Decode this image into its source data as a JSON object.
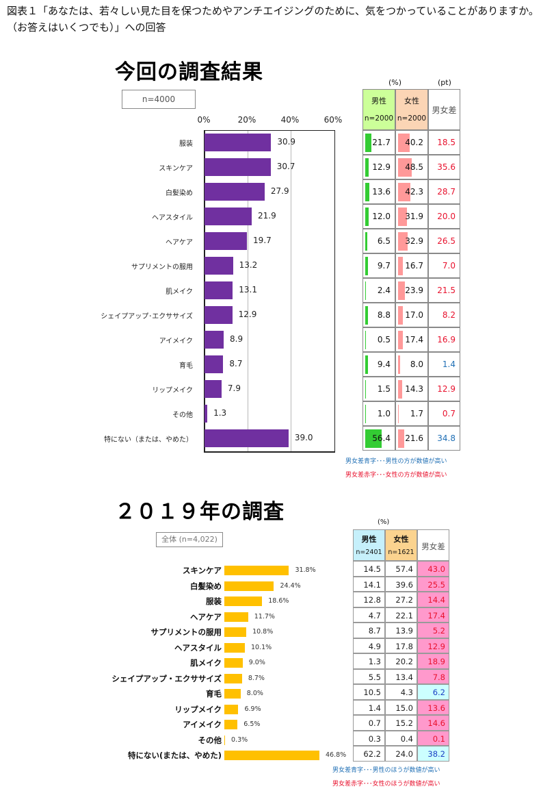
{
  "caption": "図表１「あなたは、若々しい見た目を保つためやアンチエイジングのために、気をつかっていることがありますか。（お答えはいくつでも）」への回答",
  "colors": {
    "bar_2024": "#7030a0",
    "bar_2019": "#ffc000",
    "male_header_2024": "#ccff99",
    "female_header_2024": "#fbd5b5",
    "male_bar": "#33cc33",
    "female_bar": "#ff9999",
    "male_header_2019": "#c6f0fb",
    "female_header_2019": "#fbd38f",
    "diff_female_bg_2019": "#ff99cc",
    "diff_male_bg_2019": "#ccffff",
    "diff_red_text": "#e8112d",
    "diff_blue_text": "#1f6fb5"
  },
  "chart_data": [
    {
      "type": "bar",
      "orientation": "horizontal",
      "title": "今回の調査結果",
      "sample_label": "n=4000",
      "xlabel": "",
      "ylabel": "",
      "xlim": [
        0,
        60
      ],
      "x_ticks": [
        "0%",
        "20%",
        "40%",
        "60%"
      ],
      "grid": true,
      "categories": [
        "服装",
        "スキンケア",
        "白髪染め",
        "ヘアスタイル",
        "ヘアケア",
        "サプリメントの服用",
        "肌メイク",
        "シェイプアップ･エクササイズ",
        "アイメイク",
        "育毛",
        "リップメイク",
        "その他",
        "特にない（または、やめた）"
      ],
      "values": [
        30.9,
        30.7,
        27.9,
        21.9,
        19.7,
        13.2,
        13.1,
        12.9,
        8.9,
        8.7,
        7.9,
        1.3,
        39.0
      ],
      "value_labels": [
        "30.9",
        "30.7",
        "27.9",
        "21.9",
        "19.7",
        "13.2",
        "13.1",
        "12.9",
        "8.9",
        "8.7",
        "7.9",
        "1.3",
        "39.0"
      ],
      "table": {
        "unit_pct": "(%)",
        "unit_pt": "(pt)",
        "headers": [
          {
            "label": "男性",
            "n": "n=2000"
          },
          {
            "label": "女性",
            "n": "n=2000"
          },
          {
            "label": "男女差",
            "n": ""
          }
        ],
        "series": [
          {
            "name": "男性",
            "values": [
              21.7,
              12.9,
              13.6,
              12.0,
              6.5,
              9.7,
              2.4,
              8.8,
              0.5,
              9.4,
              1.5,
              1.0,
              56.4
            ]
          },
          {
            "name": "女性",
            "values": [
              40.2,
              48.5,
              42.3,
              31.9,
              32.9,
              16.7,
              23.9,
              17.0,
              17.4,
              8.0,
              14.3,
              1.7,
              21.6
            ]
          },
          {
            "name": "男女差",
            "values": [
              18.5,
              35.6,
              28.7,
              20.0,
              26.5,
              7.0,
              21.5,
              8.2,
              16.9,
              1.4,
              12.9,
              0.7,
              34.8
            ]
          }
        ],
        "rows_text": [
          [
            "21.7",
            "40.2",
            "18.5",
            "f"
          ],
          [
            "12.9",
            "48.5",
            "35.6",
            "f"
          ],
          [
            "13.6",
            "42.3",
            "28.7",
            "f"
          ],
          [
            "12.0",
            "31.9",
            "20.0",
            "f"
          ],
          [
            "6.5",
            "32.9",
            "26.5",
            "f"
          ],
          [
            "9.7",
            "16.7",
            "7.0",
            "f"
          ],
          [
            "2.4",
            "23.9",
            "21.5",
            "f"
          ],
          [
            "8.8",
            "17.0",
            "8.2",
            "f"
          ],
          [
            "0.5",
            "17.4",
            "16.9",
            "f"
          ],
          [
            "9.4",
            "8.0",
            "1.4",
            "m"
          ],
          [
            "1.5",
            "14.3",
            "12.9",
            "f"
          ],
          [
            "1.0",
            "1.7",
            "0.7",
            "f"
          ],
          [
            "56.4",
            "21.6",
            "34.8",
            "m"
          ]
        ],
        "legend": [
          {
            "text": "男女差青字･･･男性の方が数値が高い",
            "color": "blue"
          },
          {
            "text": "男女差赤字･･･女性の方が数値が高い",
            "color": "red"
          }
        ]
      }
    },
    {
      "type": "bar",
      "orientation": "horizontal",
      "title": "２０１９年の調査",
      "sample_label": "全体 (n=4,022)",
      "xlabel": "",
      "ylabel": "",
      "grid": false,
      "categories": [
        "スキンケア",
        "白髪染め",
        "服装",
        "ヘアケア",
        "サプリメントの服用",
        "ヘアスタイル",
        "肌メイク",
        "シェイプアップ・エクササイズ",
        "育毛",
        "リップメイク",
        "アイメイク",
        "その他",
        "特にない(または、やめた)"
      ],
      "values": [
        31.8,
        24.4,
        18.6,
        11.7,
        10.8,
        10.1,
        9.0,
        8.7,
        8.0,
        6.9,
        6.5,
        0.3,
        46.8
      ],
      "value_labels": [
        "31.8%",
        "24.4%",
        "18.6%",
        "11.7%",
        "10.8%",
        "10.1%",
        "9.0%",
        "8.7%",
        "8.0%",
        "6.9%",
        "6.5%",
        "0.3%",
        "46.8%"
      ],
      "table": {
        "unit_pct": "(%)",
        "headers": [
          {
            "label": "男性",
            "n": "n=2401"
          },
          {
            "label": "女性",
            "n": "n=1621"
          },
          {
            "label": "男女差",
            "n": ""
          }
        ],
        "series": [
          {
            "name": "男性",
            "values": [
              14.5,
              14.1,
              12.8,
              4.7,
              8.7,
              4.9,
              1.3,
              5.5,
              10.5,
              1.4,
              0.7,
              0.3,
              62.2
            ]
          },
          {
            "name": "女性",
            "values": [
              57.4,
              39.6,
              27.2,
              22.1,
              13.9,
              17.8,
              20.2,
              13.4,
              4.3,
              15.0,
              15.2,
              0.4,
              24.0
            ]
          },
          {
            "name": "男女差",
            "values": [
              43.0,
              25.5,
              14.4,
              17.4,
              5.2,
              12.9,
              18.9,
              7.8,
              6.2,
              13.6,
              14.6,
              0.1,
              38.2
            ]
          }
        ],
        "rows_text": [
          [
            "14.5",
            "57.4",
            "43.0",
            "f"
          ],
          [
            "14.1",
            "39.6",
            "25.5",
            "f"
          ],
          [
            "12.8",
            "27.2",
            "14.4",
            "f"
          ],
          [
            "4.7",
            "22.1",
            "17.4",
            "f"
          ],
          [
            "8.7",
            "13.9",
            "5.2",
            "f"
          ],
          [
            "4.9",
            "17.8",
            "12.9",
            "f"
          ],
          [
            "1.3",
            "20.2",
            "18.9",
            "f"
          ],
          [
            "5.5",
            "13.4",
            "7.8",
            "f"
          ],
          [
            "10.5",
            "4.3",
            "6.2",
            "m"
          ],
          [
            "1.4",
            "15.0",
            "13.6",
            "f"
          ],
          [
            "0.7",
            "15.2",
            "14.6",
            "f"
          ],
          [
            "0.3",
            "0.4",
            "0.1",
            "f"
          ],
          [
            "62.2",
            "24.0",
            "38.2",
            "m"
          ]
        ],
        "legend": [
          {
            "text": "男女差青字･･･男性のほうが数値が高い",
            "color": "blue"
          },
          {
            "text": "男女差赤字･･･女性のほうが数値が高い",
            "color": "red"
          }
        ]
      }
    }
  ]
}
